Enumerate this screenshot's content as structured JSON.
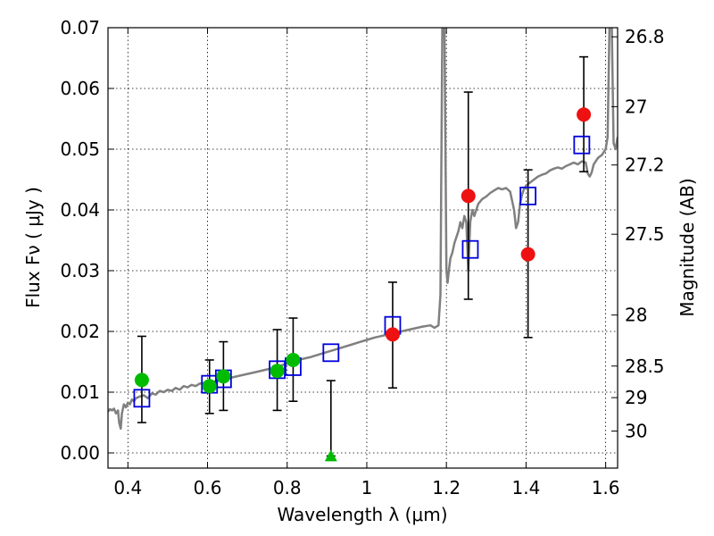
{
  "chart_data": {
    "type": "scatter",
    "xlabel": "Wavelength  λ (μm)",
    "ylabel": "Flux  Fν  ( μJy )",
    "y2label": "Magnitude (AB)",
    "xlim": [
      0.35,
      1.63
    ],
    "ylim": [
      -0.0025,
      0.07
    ],
    "grid": true,
    "x_ticks": [
      0.4,
      0.6,
      0.8,
      1.0,
      1.2,
      1.4,
      1.6
    ],
    "x_tick_labels": [
      "0.4",
      "0.6",
      "0.8",
      "1",
      "1.2",
      "1.4",
      "1.6"
    ],
    "y_ticks": [
      0.0,
      0.01,
      0.02,
      0.03,
      0.04,
      0.05,
      0.06,
      0.07
    ],
    "y_tick_labels": [
      "0.00",
      "0.01",
      "0.02",
      "0.03",
      "0.04",
      "0.05",
      "0.06",
      "0.07"
    ],
    "right_ticks": [
      {
        "label": "26.8",
        "flux": 0.0685
      },
      {
        "label": "27",
        "flux": 0.057
      },
      {
        "label": "27.2",
        "flux": 0.0474
      },
      {
        "label": "27.5",
        "flux": 0.036
      },
      {
        "label": "28",
        "flux": 0.0227
      },
      {
        "label": "28.5",
        "flux": 0.0143
      },
      {
        "label": "29",
        "flux": 0.0091
      },
      {
        "label": "30",
        "flux": 0.0036
      }
    ],
    "colors": {
      "green": "#00bb00",
      "red": "#ee1111",
      "blue": "#0000dd",
      "model": "#808080"
    },
    "series": [
      {
        "marker": "circle-green",
        "points": [
          {
            "x": 0.435,
            "y": 0.012,
            "err_lo": 0.005,
            "err_hi": 0.0192
          },
          {
            "x": 0.605,
            "y": 0.011,
            "err_lo": 0.0065,
            "err_hi": 0.0153
          },
          {
            "x": 0.64,
            "y": 0.0126,
            "err_lo": 0.007,
            "err_hi": 0.0183
          },
          {
            "x": 0.775,
            "y": 0.0135,
            "err_lo": 0.007,
            "err_hi": 0.0203
          },
          {
            "x": 0.815,
            "y": 0.0153,
            "err_lo": 0.0085,
            "err_hi": 0.0222
          }
        ]
      },
      {
        "marker": "triangle-green",
        "points": [
          {
            "x": 0.91,
            "y": -0.0005,
            "err_lo": -0.0005,
            "err_hi": 0.0119
          }
        ]
      },
      {
        "marker": "circle-red",
        "points": [
          {
            "x": 1.065,
            "y": 0.0195,
            "err_lo": 0.0107,
            "err_hi": 0.0281
          },
          {
            "x": 1.255,
            "y": 0.0423,
            "err_lo": 0.0253,
            "err_hi": 0.0594
          },
          {
            "x": 1.405,
            "y": 0.0327,
            "err_lo": 0.019,
            "err_hi": 0.0466
          },
          {
            "x": 1.545,
            "y": 0.0557,
            "err_lo": 0.0463,
            "err_hi": 0.0652
          }
        ]
      },
      {
        "marker": "square-blue",
        "points": [
          {
            "x": 0.435,
            "y": 0.009
          },
          {
            "x": 0.605,
            "y": 0.0113
          },
          {
            "x": 0.64,
            "y": 0.0122
          },
          {
            "x": 0.775,
            "y": 0.0137
          },
          {
            "x": 0.815,
            "y": 0.0142
          },
          {
            "x": 0.91,
            "y": 0.0165
          },
          {
            "x": 1.065,
            "y": 0.021
          },
          {
            "x": 1.26,
            "y": 0.0335
          },
          {
            "x": 1.405,
            "y": 0.0423
          },
          {
            "x": 1.54,
            "y": 0.0507
          }
        ]
      }
    ],
    "model_spectrum": {
      "x": [
        0.35,
        0.355,
        0.36,
        0.365,
        0.37,
        0.375,
        0.378,
        0.382,
        0.385,
        0.39,
        0.395,
        0.4,
        0.405,
        0.41,
        0.415,
        0.42,
        0.43,
        0.44,
        0.45,
        0.46,
        0.47,
        0.48,
        0.49,
        0.5,
        0.51,
        0.52,
        0.53,
        0.54,
        0.55,
        0.56,
        0.57,
        0.58,
        0.6,
        0.62,
        0.64,
        0.66,
        0.68,
        0.7,
        0.72,
        0.74,
        0.76,
        0.78,
        0.8,
        0.82,
        0.84,
        0.86,
        0.88,
        0.9,
        0.92,
        0.94,
        0.96,
        0.98,
        1.0,
        1.02,
        1.04,
        1.06,
        1.08,
        1.1,
        1.12,
        1.14,
        1.16,
        1.17,
        1.18,
        1.185,
        1.19,
        1.195,
        1.2,
        1.203,
        1.206,
        1.21,
        1.215,
        1.22,
        1.23,
        1.235,
        1.24,
        1.245,
        1.25,
        1.255,
        1.26,
        1.265,
        1.27,
        1.28,
        1.29,
        1.3,
        1.31,
        1.32,
        1.33,
        1.34,
        1.35,
        1.36,
        1.37,
        1.375,
        1.38,
        1.385,
        1.39,
        1.395,
        1.4,
        1.41,
        1.42,
        1.43,
        1.44,
        1.45,
        1.46,
        1.47,
        1.48,
        1.49,
        1.5,
        1.51,
        1.52,
        1.53,
        1.54,
        1.55,
        1.555,
        1.56,
        1.565,
        1.57,
        1.575,
        1.58,
        1.585,
        1.59,
        1.595,
        1.6,
        1.605,
        1.61,
        1.615,
        1.62,
        1.625,
        1.63
      ],
      "y": [
        0.0068,
        0.0072,
        0.007,
        0.0073,
        0.0065,
        0.007,
        0.005,
        0.004,
        0.0065,
        0.008,
        0.0075,
        0.0083,
        0.008,
        0.0088,
        0.0085,
        0.009,
        0.0093,
        0.0095,
        0.009,
        0.0098,
        0.0096,
        0.0102,
        0.01,
        0.0104,
        0.0102,
        0.0107,
        0.0104,
        0.011,
        0.0108,
        0.0112,
        0.011,
        0.0114,
        0.0116,
        0.0118,
        0.012,
        0.0124,
        0.0127,
        0.013,
        0.0133,
        0.0136,
        0.0139,
        0.0143,
        0.0147,
        0.0151,
        0.0155,
        0.0158,
        0.0162,
        0.0166,
        0.017,
        0.0174,
        0.0178,
        0.0182,
        0.0186,
        0.019,
        0.0193,
        0.0196,
        0.0199,
        0.0202,
        0.0205,
        0.0208,
        0.021,
        0.0206,
        0.021,
        0.026,
        0.072,
        0.072,
        0.03,
        0.028,
        0.03,
        0.032,
        0.033,
        0.0345,
        0.0365,
        0.038,
        0.037,
        0.039,
        0.038,
        0.03,
        0.038,
        0.04,
        0.039,
        0.041,
        0.0418,
        0.0422,
        0.0428,
        0.0432,
        0.0436,
        0.0434,
        0.0436,
        0.043,
        0.04,
        0.037,
        0.038,
        0.041,
        0.0425,
        0.0435,
        0.044,
        0.0445,
        0.045,
        0.0455,
        0.0458,
        0.046,
        0.0465,
        0.0468,
        0.047,
        0.0468,
        0.0472,
        0.0475,
        0.0478,
        0.0475,
        0.048,
        0.0478,
        0.046,
        0.0455,
        0.0462,
        0.0475,
        0.048,
        0.0485,
        0.0488,
        0.049,
        0.0495,
        0.05,
        0.052,
        0.072,
        0.072,
        0.051,
        0.05,
        0.052
      ]
    }
  }
}
